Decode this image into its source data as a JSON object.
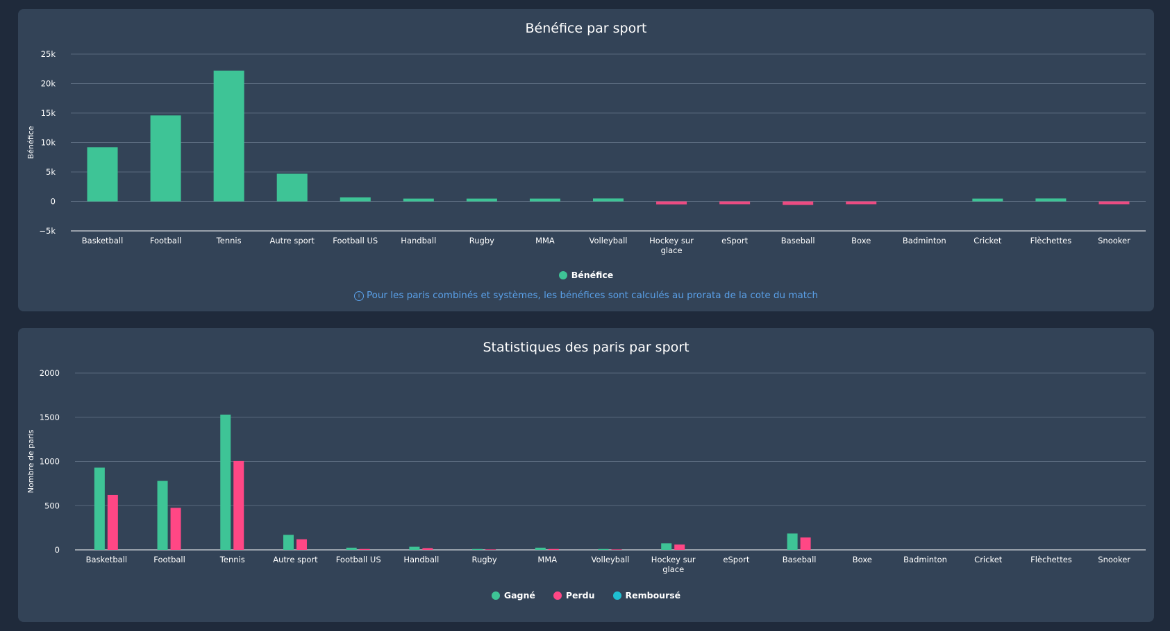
{
  "chart_data": [
    {
      "type": "bar",
      "title": "Bénéfice par sport",
      "ylabel": "Bénéfice",
      "xlabel": "",
      "ylim": [
        -5000,
        25000
      ],
      "yticks": [
        "25k",
        "20k",
        "15k",
        "10k",
        "5k",
        "0",
        "−5k"
      ],
      "ytick_values": [
        25000,
        20000,
        15000,
        10000,
        5000,
        0,
        -5000
      ],
      "categories": [
        "Basketball",
        "Football",
        "Tennis",
        "Autre sport",
        "Football US",
        "Handball",
        "Rugby",
        "MMA",
        "Volleyball",
        "Hockey sur glace",
        "eSport",
        "Baseball",
        "Boxe",
        "Badminton",
        "Cricket",
        "Flèchettes",
        "Snooker"
      ],
      "series": [
        {
          "name": "Bénéfice",
          "values": [
            9200,
            14600,
            22200,
            4700,
            700,
            400,
            400,
            300,
            500,
            -500,
            -100,
            -600,
            -100,
            0,
            200,
            500,
            -400
          ]
        }
      ],
      "positive_color": "#3ec496",
      "negative_color": "#ed4b82",
      "grid": true,
      "legend_position": "bottom"
    },
    {
      "type": "bar",
      "title": "Statistiques des paris par sport",
      "ylabel": "Nombre de paris",
      "xlabel": "",
      "ylim": [
        0,
        2000
      ],
      "yticks": [
        "2000",
        "1500",
        "1000",
        "500",
        "0"
      ],
      "ytick_values": [
        2000,
        1500,
        1000,
        500,
        0
      ],
      "categories": [
        "Basketball",
        "Football",
        "Tennis",
        "Autre sport",
        "Football US",
        "Handball",
        "Rugby",
        "MMA",
        "Volleyball",
        "Hockey sur glace",
        "eSport",
        "Baseball",
        "Boxe",
        "Badminton",
        "Cricket",
        "Flèchettes",
        "Snooker"
      ],
      "series": [
        {
          "name": "Gagné",
          "color": "#3ec496",
          "values": [
            930,
            780,
            1530,
            170,
            25,
            35,
            10,
            25,
            10,
            75,
            0,
            185,
            0,
            0,
            0,
            0,
            0
          ]
        },
        {
          "name": "Perdu",
          "color": "#ff4785",
          "values": [
            620,
            475,
            1005,
            120,
            10,
            20,
            5,
            10,
            5,
            60,
            0,
            140,
            0,
            0,
            0,
            0,
            0
          ]
        },
        {
          "name": "Remboursé",
          "color": "#1fbfd1",
          "values": [
            0,
            0,
            0,
            0,
            0,
            0,
            0,
            0,
            0,
            0,
            0,
            0,
            0,
            0,
            0,
            0,
            0
          ]
        }
      ],
      "grid": true,
      "legend_position": "bottom"
    }
  ],
  "profit_note": "Pour les paris combinés et systèmes, les bénéfices sont calculés au prorata de la cote du match",
  "info_icon": "info-icon"
}
